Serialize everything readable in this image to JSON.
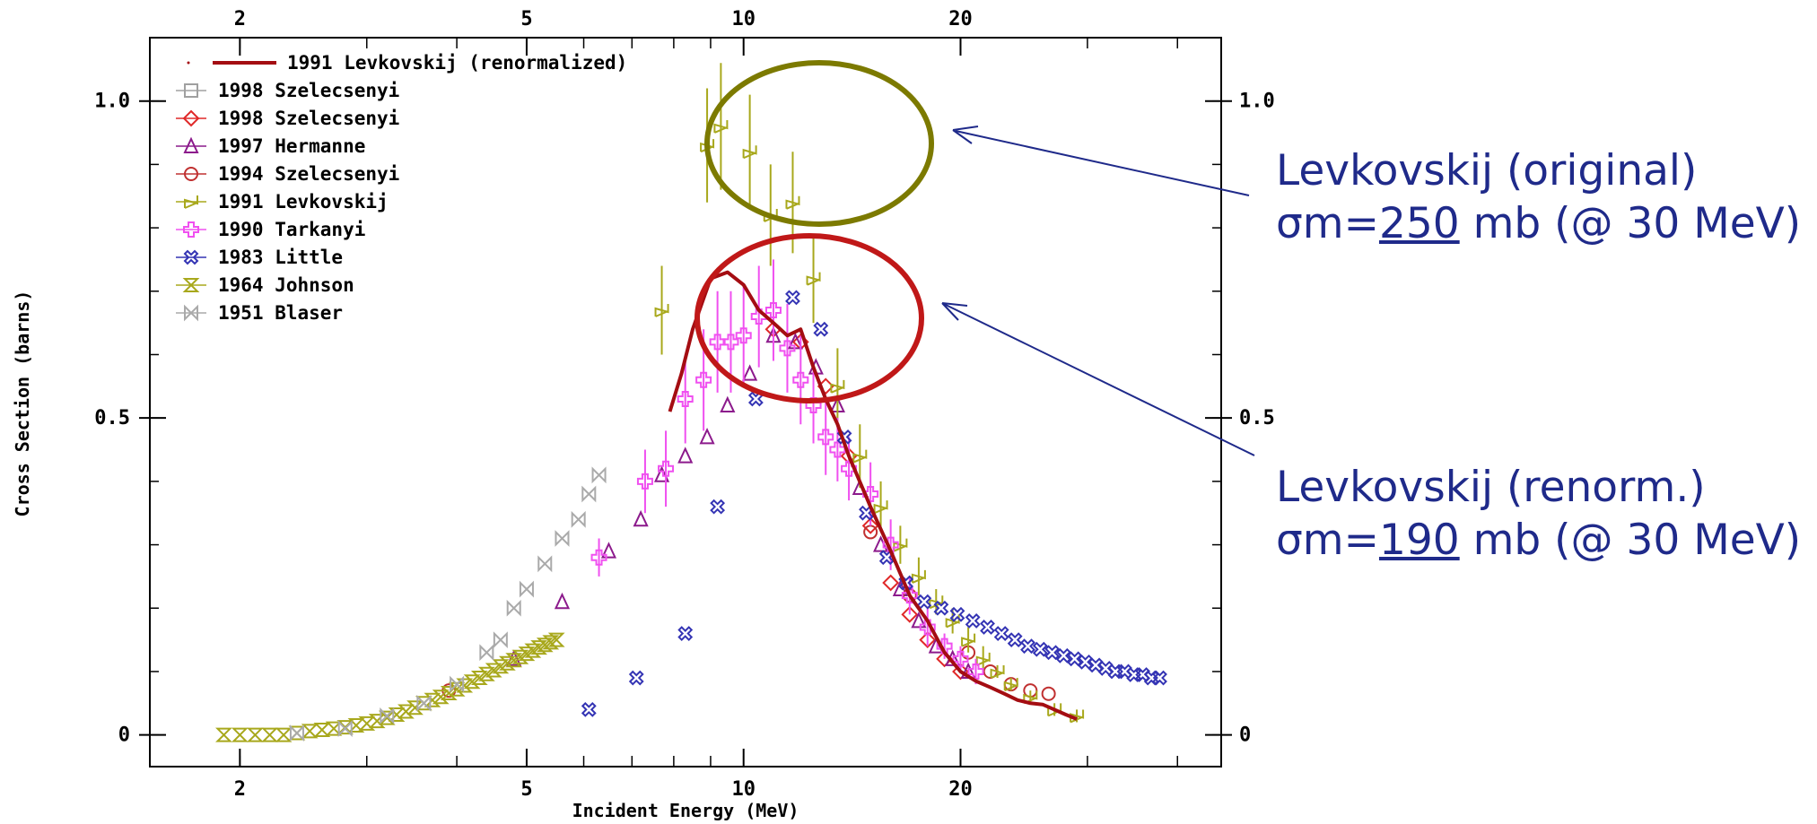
{
  "chart_data": {
    "type": "scatter",
    "xlabel": "Incident Energy (MeV)",
    "ylabel": "Cross Section (barns)",
    "x_scale": "log",
    "xlim": [
      1.5,
      46
    ],
    "ylim": [
      -0.05,
      1.1
    ],
    "x_ticks": [
      2,
      5,
      10,
      20
    ],
    "y_ticks": [
      0,
      0.5,
      1.0
    ],
    "y_tick_labels": [
      "0",
      "0.5",
      "1.0"
    ],
    "grid": false,
    "legend_position": "top-left",
    "colors": {
      "levk_renorm": "#a40d12",
      "szel98a": "#a0a0a0",
      "szel98b": "#e02828",
      "hermanne": "#8c1a8c",
      "szel94": "#c03030",
      "levk91": "#a8a81c",
      "tarkanyi": "#f050f0",
      "little": "#3434b4",
      "johnson": "#a8a81c",
      "blaser": "#aaaaaa",
      "annotation_text": "#1f2a8a",
      "ellipse_top": "#7c7a00",
      "ellipse_bottom": "#c01818"
    },
    "series": [
      {
        "name": "1991 Levkovskij (renormalized)",
        "marker": "line",
        "x": [
          7.9,
          8.2,
          8.5,
          9.0,
          9.5,
          10.0,
          10.5,
          11.0,
          11.5,
          12.0,
          12.5,
          13.0,
          13.5,
          14.0,
          15.0,
          16.0,
          17.0,
          18.0,
          19.0,
          20.0,
          21.0,
          22.0,
          23.0,
          24.0,
          25.0,
          26.0,
          27.0,
          28.0,
          29.0
        ],
        "y": [
          0.51,
          0.57,
          0.64,
          0.72,
          0.73,
          0.71,
          0.67,
          0.65,
          0.63,
          0.64,
          0.58,
          0.53,
          0.49,
          0.44,
          0.36,
          0.29,
          0.22,
          0.18,
          0.13,
          0.1,
          0.085,
          0.075,
          0.065,
          0.055,
          0.05,
          0.048,
          0.04,
          0.032,
          0.025
        ]
      },
      {
        "name": "1998 Szelecsenyi",
        "marker": "square",
        "x": [],
        "y": []
      },
      {
        "name": "1998 Szelecsenyi",
        "marker": "diamond",
        "x": [
          11.0,
          12.0,
          13.0,
          14.0,
          15.0,
          16.0,
          17.0,
          18.0,
          19.0,
          20.0
        ],
        "y": [
          0.64,
          0.62,
          0.55,
          0.44,
          0.33,
          0.24,
          0.19,
          0.15,
          0.12,
          0.1
        ]
      },
      {
        "name": "1997 Hermanne",
        "marker": "triangle",
        "x": [
          4.8,
          5.6,
          6.5,
          7.2,
          7.7,
          8.3,
          8.9,
          9.5,
          10.2,
          11.0,
          11.8,
          12.6,
          13.5,
          14.5,
          15.5,
          16.5,
          17.5,
          18.5,
          19.5,
          20.5
        ],
        "y": [
          0.12,
          0.21,
          0.29,
          0.34,
          0.41,
          0.44,
          0.47,
          0.52,
          0.57,
          0.63,
          0.62,
          0.58,
          0.52,
          0.39,
          0.3,
          0.23,
          0.18,
          0.14,
          0.12,
          0.1
        ]
      },
      {
        "name": "1994 Szelecsenyi",
        "marker": "circle",
        "x": [
          3.9,
          15.0,
          17.0,
          20.5,
          22.0,
          23.5,
          25.0,
          26.5
        ],
        "y": [
          0.07,
          0.32,
          0.22,
          0.13,
          0.1,
          0.08,
          0.07,
          0.065
        ]
      },
      {
        "name": "1991 Levkovskij",
        "marker": "z",
        "x": [
          7.7,
          8.9,
          9.3,
          10.2,
          10.9,
          11.7,
          12.5,
          13.5,
          14.5,
          15.5,
          16.5,
          17.5,
          18.5,
          19.5,
          20.5,
          21.5,
          22.5,
          23.5,
          25.0,
          27.0,
          29.0
        ],
        "y": [
          0.67,
          0.93,
          0.96,
          0.92,
          0.82,
          0.84,
          0.72,
          0.55,
          0.44,
          0.36,
          0.3,
          0.25,
          0.21,
          0.18,
          0.15,
          0.12,
          0.1,
          0.08,
          0.06,
          0.04,
          0.03
        ],
        "yerr": [
          0.07,
          0.09,
          0.1,
          0.09,
          0.08,
          0.08,
          0.07,
          0.06,
          0.05,
          0.04,
          0.03,
          0.03,
          0.02,
          0.02,
          0.02,
          0.02,
          0.01,
          0.01,
          0.01,
          0.01,
          0.01
        ]
      },
      {
        "name": "1990 Tarkanyi",
        "marker": "plus",
        "x": [
          6.3,
          7.3,
          7.8,
          8.3,
          8.8,
          9.2,
          9.6,
          10.0,
          10.5,
          11.0,
          11.5,
          12.0,
          12.5,
          13.0,
          13.5,
          14.0,
          15.0,
          16.0,
          17.0,
          18.0,
          19.0,
          20.0,
          21.0
        ],
        "y": [
          0.28,
          0.4,
          0.42,
          0.53,
          0.56,
          0.62,
          0.62,
          0.63,
          0.66,
          0.67,
          0.61,
          0.56,
          0.52,
          0.47,
          0.45,
          0.42,
          0.38,
          0.3,
          0.22,
          0.17,
          0.14,
          0.12,
          0.1
        ],
        "yerr": [
          0.03,
          0.05,
          0.06,
          0.07,
          0.08,
          0.08,
          0.08,
          0.08,
          0.08,
          0.08,
          0.07,
          0.07,
          0.06,
          0.06,
          0.05,
          0.05,
          0.05,
          0.04,
          0.03,
          0.03,
          0.02,
          0.02,
          0.02
        ]
      },
      {
        "name": "1983 Little",
        "marker": "cross",
        "x": [
          6.1,
          7.1,
          8.3,
          9.2,
          10.4,
          11.7,
          12.8,
          13.8,
          14.8,
          15.8,
          16.8,
          17.8,
          18.8,
          19.8,
          20.8,
          21.8,
          22.8,
          23.8,
          24.8,
          25.8,
          26.8,
          27.8,
          28.8,
          29.8,
          30.8,
          31.8,
          32.8,
          33.8,
          34.8,
          35.8,
          36.8,
          37.8
        ],
        "y": [
          0.04,
          0.09,
          0.16,
          0.36,
          0.53,
          0.69,
          0.64,
          0.47,
          0.35,
          0.28,
          0.24,
          0.21,
          0.2,
          0.19,
          0.18,
          0.17,
          0.16,
          0.15,
          0.14,
          0.135,
          0.13,
          0.125,
          0.12,
          0.115,
          0.11,
          0.105,
          0.1,
          0.1,
          0.095,
          0.095,
          0.09,
          0.09
        ]
      },
      {
        "name": "1964 Johnson",
        "marker": "hourglass",
        "x": [
          1.9,
          2.0,
          2.1,
          2.2,
          2.3,
          2.4,
          2.5,
          2.6,
          2.7,
          2.8,
          2.9,
          3.0,
          3.1,
          3.2,
          3.3,
          3.4,
          3.5,
          3.6,
          3.7,
          3.8,
          3.9,
          4.0,
          4.1,
          4.2,
          4.3,
          4.4,
          4.5,
          4.6,
          4.7,
          4.8,
          4.9,
          5.0,
          5.1,
          5.2,
          5.3,
          5.4,
          5.5
        ],
        "y": [
          0,
          0,
          0,
          0,
          0,
          0.003,
          0.006,
          0.008,
          0.01,
          0.012,
          0.015,
          0.018,
          0.022,
          0.027,
          0.032,
          0.037,
          0.043,
          0.05,
          0.055,
          0.06,
          0.066,
          0.072,
          0.078,
          0.084,
          0.09,
          0.096,
          0.102,
          0.108,
          0.113,
          0.118,
          0.123,
          0.128,
          0.133,
          0.138,
          0.142,
          0.146,
          0.15
        ]
      },
      {
        "name": "1951 Blaser",
        "marker": "bowtie",
        "x": [
          2.4,
          2.8,
          3.2,
          3.6,
          4.0,
          4.4,
          4.6,
          4.8,
          5.0,
          5.3,
          5.6,
          5.9,
          6.1,
          6.3
        ],
        "y": [
          0.003,
          0.01,
          0.03,
          0.05,
          0.08,
          0.13,
          0.15,
          0.2,
          0.23,
          0.27,
          0.31,
          0.34,
          0.38,
          0.41
        ]
      }
    ],
    "annotations": [
      {
        "line1": "Levkovskij (original)",
        "line2_prefix": "σm=",
        "line2_value": "250",
        "line2_suffix": " mb (@ 30 MeV)"
      },
      {
        "line1": "Levkovskij (renorm.)",
        "line2_prefix": "σm=",
        "line2_value": "190",
        "line2_suffix": " mb (@ 30 MeV)"
      }
    ]
  }
}
